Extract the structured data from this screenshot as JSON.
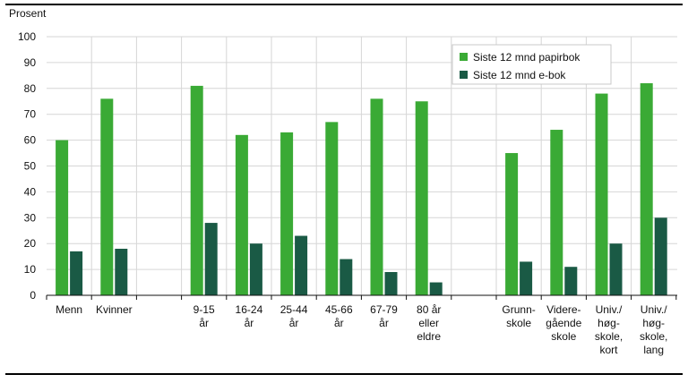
{
  "chart_data": {
    "type": "bar",
    "ylabel": "Prosent",
    "ylim": [
      0,
      100
    ],
    "yticks": [
      0,
      10,
      20,
      30,
      40,
      50,
      60,
      70,
      80,
      90,
      100
    ],
    "grid": true,
    "legend_position": "top-right",
    "categories": [
      {
        "lines": [
          "Menn"
        ],
        "group": 0
      },
      {
        "lines": [
          "Kvinner"
        ],
        "group": 0
      },
      {
        "lines": [
          "9-15",
          "år"
        ],
        "group": 1
      },
      {
        "lines": [
          "16-24",
          "år"
        ],
        "group": 1
      },
      {
        "lines": [
          "25-44",
          "år"
        ],
        "group": 1
      },
      {
        "lines": [
          "45-66",
          "år"
        ],
        "group": 1
      },
      {
        "lines": [
          "67-79",
          "år"
        ],
        "group": 1
      },
      {
        "lines": [
          "80 år",
          "eller",
          "eldre"
        ],
        "group": 1
      },
      {
        "lines": [
          "Grunn-",
          "skole"
        ],
        "group": 2
      },
      {
        "lines": [
          "Videre-",
          "gående",
          "skole"
        ],
        "group": 2
      },
      {
        "lines": [
          "Univ./",
          "høg-",
          "skole,",
          "kort"
        ],
        "group": 2
      },
      {
        "lines": [
          "Univ./",
          "høg-",
          "skole,",
          "lang"
        ],
        "group": 2
      }
    ],
    "series": [
      {
        "name": "Siste 12 mnd papirbok",
        "color": "#3aaa35",
        "values": [
          60,
          76,
          81,
          62,
          63,
          67,
          76,
          75,
          55,
          64,
          78,
          82
        ]
      },
      {
        "name": "Siste 12 mnd e-bok",
        "color": "#1a5a45",
        "values": [
          17,
          18,
          28,
          20,
          23,
          14,
          9,
          5,
          13,
          11,
          20,
          30
        ]
      }
    ]
  }
}
